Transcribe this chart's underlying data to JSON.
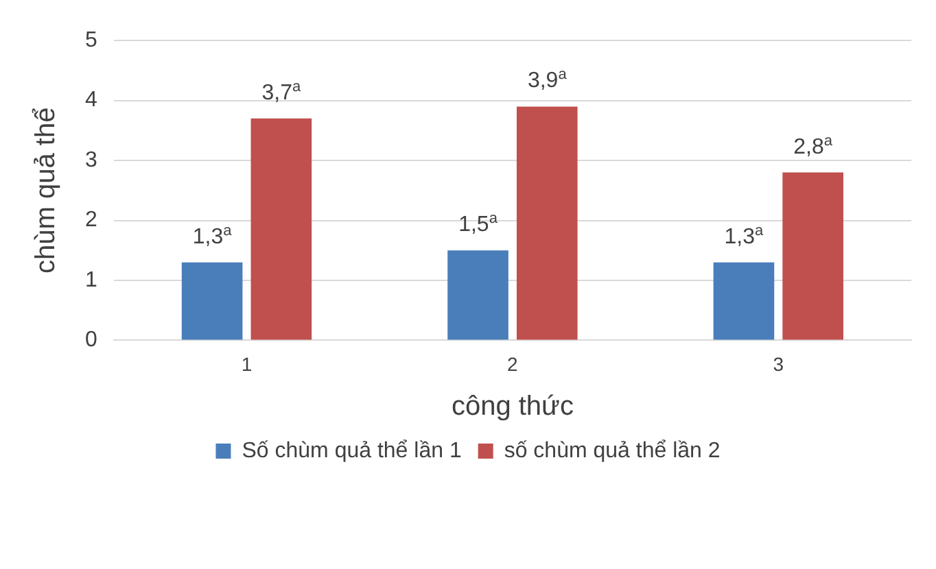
{
  "chart_data": {
    "type": "bar",
    "xlabel": "công thức",
    "ylabel": "chùm quả thể",
    "categories": [
      "1",
      "2",
      "3"
    ],
    "series": [
      {
        "name": "Số chùm quả thể lần 1",
        "color": "#4a7ebb",
        "values": [
          1.3,
          1.5,
          1.3
        ],
        "value_labels": [
          "1,3$^{a}$",
          "1,5$^{a}$",
          "1,3$^{a}$"
        ]
      },
      {
        "name": "số chùm quả thể lần 2",
        "color": "#c0504d",
        "values": [
          3.7,
          3.9,
          2.8
        ],
        "value_labels": [
          "3,7$^{a}$",
          "3,9$^{a}$",
          "2,8$^{a}$"
        ]
      }
    ],
    "ylim": [
      0,
      5
    ],
    "yticks": [
      0,
      1,
      2,
      3,
      4,
      5
    ],
    "grid": "y",
    "legend": "bottom"
  }
}
